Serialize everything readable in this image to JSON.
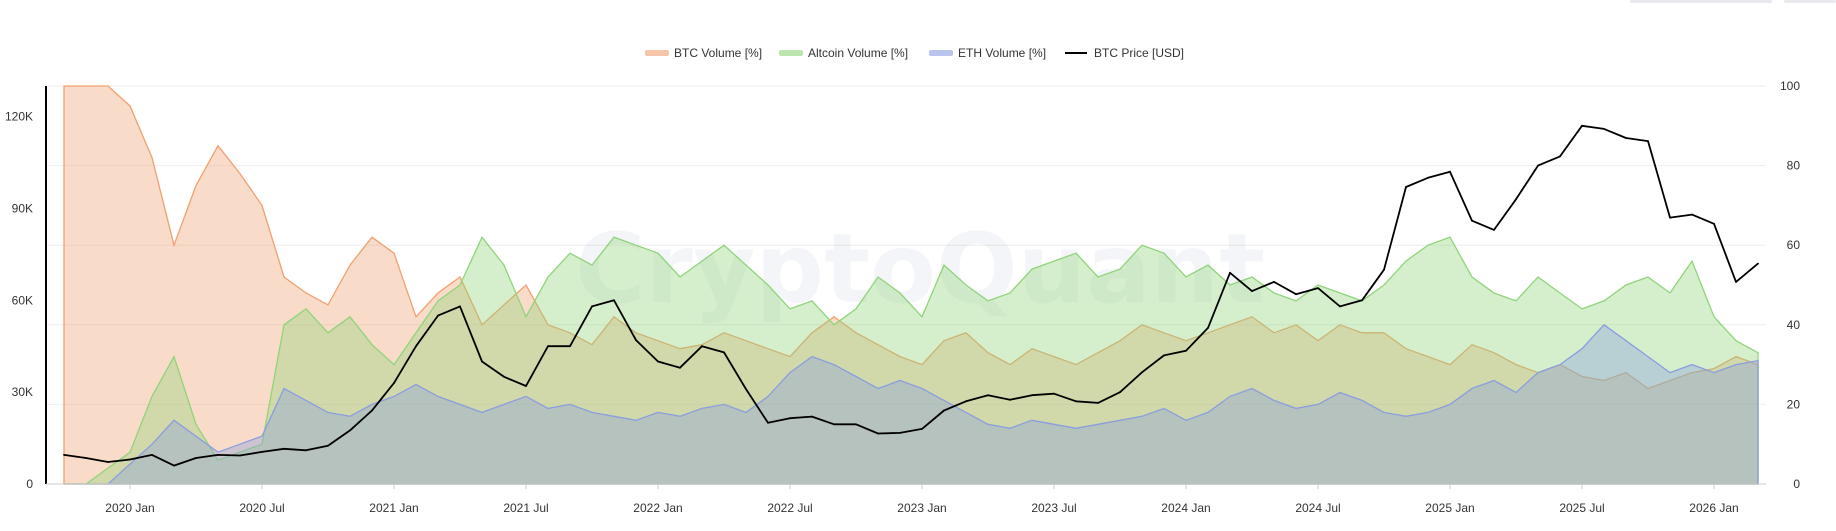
{
  "chart_data": {
    "type": "area",
    "watermark": "CryptoQuant",
    "legend": {
      "placement": "top-center",
      "items": [
        {
          "key": "btc_volume",
          "label": "BTC Volume [%]",
          "color": "#f0a070",
          "kind": "area"
        },
        {
          "key": "alt_volume",
          "label": "Altcoin Volume [%]",
          "color": "#90d47a",
          "kind": "area"
        },
        {
          "key": "eth_volume",
          "label": "ETH Volume [%]",
          "color": "#8a9ee0",
          "kind": "area"
        },
        {
          "key": "btc_price",
          "label": "BTC Price [USD]",
          "color": "#000000",
          "kind": "line"
        }
      ]
    },
    "x_ticks": [
      "2020 Jan",
      "2020 Jul",
      "2021 Jan",
      "2021 Jul",
      "2022 Jan",
      "2022 Jul",
      "2023 Jan",
      "2023 Jul",
      "2024 Jan",
      "2024 Jul",
      "2025 Jan",
      "2025 Jul",
      "2026 Jan"
    ],
    "x_range": [
      "2019-10",
      "2026-03"
    ],
    "y_left": {
      "label": "",
      "range": [
        0,
        130000
      ],
      "ticks": [
        0,
        30000,
        60000,
        90000,
        120000
      ],
      "tick_labels": [
        "0",
        "30K",
        "60K",
        "90K",
        "120K"
      ]
    },
    "y_right": {
      "label": "",
      "range": [
        0,
        100
      ],
      "ticks": [
        0,
        20,
        40,
        60,
        80,
        100
      ],
      "tick_labels": [
        "0",
        "20",
        "40",
        "60",
        "80",
        "100"
      ]
    },
    "grid": true,
    "series": [
      {
        "name": "BTC Volume [%]",
        "axis": "right",
        "color": "#f0a070",
        "x": [
          "2019-10",
          "2019-11",
          "2019-12",
          "2020-01",
          "2020-02",
          "2020-03",
          "2020-04",
          "2020-05",
          "2020-06",
          "2020-07",
          "2020-08",
          "2020-09",
          "2020-10",
          "2020-11",
          "2020-12",
          "2021-01",
          "2021-02",
          "2021-03",
          "2021-04",
          "2021-05",
          "2021-06",
          "2021-07",
          "2021-08",
          "2021-09",
          "2021-10",
          "2021-11",
          "2021-12",
          "2022-01",
          "2022-02",
          "2022-03",
          "2022-04",
          "2022-05",
          "2022-06",
          "2022-07",
          "2022-08",
          "2022-09",
          "2022-10",
          "2022-11",
          "2022-12",
          "2023-01",
          "2023-02",
          "2023-03",
          "2023-04",
          "2023-05",
          "2023-06",
          "2023-07",
          "2023-08",
          "2023-09",
          "2023-10",
          "2023-11",
          "2023-12",
          "2024-01",
          "2024-02",
          "2024-03",
          "2024-04",
          "2024-05",
          "2024-06",
          "2024-07",
          "2024-08",
          "2024-09",
          "2024-10",
          "2024-11",
          "2024-12",
          "2025-01",
          "2025-02",
          "2025-03",
          "2025-04",
          "2025-05",
          "2025-06",
          "2025-07",
          "2025-08",
          "2025-09",
          "2025-10",
          "2025-11",
          "2025-12",
          "2026-01",
          "2026-02",
          "2026-03"
        ],
        "values": [
          100,
          100,
          100,
          95,
          82,
          60,
          75,
          85,
          78,
          70,
          52,
          48,
          45,
          55,
          62,
          58,
          42,
          48,
          52,
          40,
          45,
          50,
          40,
          38,
          35,
          42,
          38,
          36,
          34,
          35,
          38,
          36,
          34,
          32,
          38,
          42,
          38,
          35,
          32,
          30,
          36,
          38,
          33,
          30,
          34,
          32,
          30,
          33,
          36,
          40,
          38,
          36,
          38,
          40,
          42,
          38,
          40,
          36,
          40,
          38,
          38,
          34,
          32,
          30,
          35,
          33,
          30,
          28,
          30,
          27,
          26,
          28,
          24,
          26,
          28,
          29,
          32,
          30
        ]
      },
      {
        "name": "Altcoin Volume [%]",
        "axis": "right",
        "color": "#90d47a",
        "x": [
          "2019-10",
          "2019-11",
          "2019-12",
          "2020-01",
          "2020-02",
          "2020-03",
          "2020-04",
          "2020-05",
          "2020-06",
          "2020-07",
          "2020-08",
          "2020-09",
          "2020-10",
          "2020-11",
          "2020-12",
          "2021-01",
          "2021-02",
          "2021-03",
          "2021-04",
          "2021-05",
          "2021-06",
          "2021-07",
          "2021-08",
          "2021-09",
          "2021-10",
          "2021-11",
          "2021-12",
          "2022-01",
          "2022-02",
          "2022-03",
          "2022-04",
          "2022-05",
          "2022-06",
          "2022-07",
          "2022-08",
          "2022-09",
          "2022-10",
          "2022-11",
          "2022-12",
          "2023-01",
          "2023-02",
          "2023-03",
          "2023-04",
          "2023-05",
          "2023-06",
          "2023-07",
          "2023-08",
          "2023-09",
          "2023-10",
          "2023-11",
          "2023-12",
          "2024-01",
          "2024-02",
          "2024-03",
          "2024-04",
          "2024-05",
          "2024-06",
          "2024-07",
          "2024-08",
          "2024-09",
          "2024-10",
          "2024-11",
          "2024-12",
          "2025-01",
          "2025-02",
          "2025-03",
          "2025-04",
          "2025-05",
          "2025-06",
          "2025-07",
          "2025-08",
          "2025-09",
          "2025-10",
          "2025-11",
          "2025-12",
          "2026-01",
          "2026-02",
          "2026-03"
        ],
        "values": [
          0,
          0,
          4,
          8,
          22,
          32,
          15,
          6,
          8,
          10,
          40,
          44,
          38,
          42,
          35,
          30,
          38,
          46,
          50,
          62,
          55,
          42,
          52,
          58,
          55,
          62,
          60,
          58,
          52,
          56,
          60,
          55,
          50,
          44,
          46,
          40,
          44,
          52,
          48,
          42,
          55,
          50,
          46,
          48,
          54,
          56,
          58,
          52,
          54,
          60,
          58,
          52,
          55,
          50,
          52,
          48,
          46,
          50,
          48,
          46,
          50,
          56,
          60,
          62,
          52,
          48,
          46,
          52,
          48,
          44,
          46,
          50,
          52,
          48,
          56,
          42,
          36,
          33
        ]
      },
      {
        "name": "ETH Volume [%]",
        "axis": "right",
        "color": "#8a9ee0",
        "x": [
          "2019-10",
          "2019-11",
          "2019-12",
          "2020-01",
          "2020-02",
          "2020-03",
          "2020-04",
          "2020-05",
          "2020-06",
          "2020-07",
          "2020-08",
          "2020-09",
          "2020-10",
          "2020-11",
          "2020-12",
          "2021-01",
          "2021-02",
          "2021-03",
          "2021-04",
          "2021-05",
          "2021-06",
          "2021-07",
          "2021-08",
          "2021-09",
          "2021-10",
          "2021-11",
          "2021-12",
          "2022-01",
          "2022-02",
          "2022-03",
          "2022-04",
          "2022-05",
          "2022-06",
          "2022-07",
          "2022-08",
          "2022-09",
          "2022-10",
          "2022-11",
          "2022-12",
          "2023-01",
          "2023-02",
          "2023-03",
          "2023-04",
          "2023-05",
          "2023-06",
          "2023-07",
          "2023-08",
          "2023-09",
          "2023-10",
          "2023-11",
          "2023-12",
          "2024-01",
          "2024-02",
          "2024-03",
          "2024-04",
          "2024-05",
          "2024-06",
          "2024-07",
          "2024-08",
          "2024-09",
          "2024-10",
          "2024-11",
          "2024-12",
          "2025-01",
          "2025-02",
          "2025-03",
          "2025-04",
          "2025-05",
          "2025-06",
          "2025-07",
          "2025-08",
          "2025-09",
          "2025-10",
          "2025-11",
          "2025-12",
          "2026-01",
          "2026-02",
          "2026-03"
        ],
        "values": [
          0,
          0,
          0,
          5,
          10,
          16,
          12,
          8,
          10,
          12,
          24,
          21,
          18,
          17,
          20,
          22,
          25,
          22,
          20,
          18,
          20,
          22,
          19,
          20,
          18,
          17,
          16,
          18,
          17,
          19,
          20,
          18,
          22,
          28,
          32,
          30,
          27,
          24,
          26,
          24,
          21,
          18,
          15,
          14,
          16,
          15,
          14,
          15,
          16,
          17,
          19,
          16,
          18,
          22,
          24,
          21,
          19,
          20,
          23,
          21,
          18,
          17,
          18,
          20,
          24,
          26,
          23,
          28,
          30,
          34,
          40,
          36,
          32,
          28,
          30,
          28,
          30,
          31
        ]
      },
      {
        "name": "BTC Price [USD]",
        "axis": "left",
        "color": "#000000",
        "kind": "line",
        "x": [
          "2019-10",
          "2019-11",
          "2019-12",
          "2020-01",
          "2020-02",
          "2020-03",
          "2020-04",
          "2020-05",
          "2020-06",
          "2020-07",
          "2020-08",
          "2020-09",
          "2020-10",
          "2020-11",
          "2020-12",
          "2021-01",
          "2021-02",
          "2021-03",
          "2021-04",
          "2021-05",
          "2021-06",
          "2021-07",
          "2021-08",
          "2021-09",
          "2021-10",
          "2021-11",
          "2021-12",
          "2022-01",
          "2022-02",
          "2022-03",
          "2022-04",
          "2022-05",
          "2022-06",
          "2022-07",
          "2022-08",
          "2022-09",
          "2022-10",
          "2022-11",
          "2022-12",
          "2023-01",
          "2023-02",
          "2023-03",
          "2023-04",
          "2023-05",
          "2023-06",
          "2023-07",
          "2023-08",
          "2023-09",
          "2023-10",
          "2023-11",
          "2023-12",
          "2024-01",
          "2024-02",
          "2024-03",
          "2024-04",
          "2024-05",
          "2024-06",
          "2024-07",
          "2024-08",
          "2024-09",
          "2024-10",
          "2024-11",
          "2024-12",
          "2025-01",
          "2025-02",
          "2025-03",
          "2025-04",
          "2025-05",
          "2025-06",
          "2025-07",
          "2025-08",
          "2025-09",
          "2025-10",
          "2025-11",
          "2025-12",
          "2026-01",
          "2026-02",
          "2026-03"
        ],
        "values": [
          9500,
          8500,
          7200,
          8000,
          9500,
          6000,
          8500,
          9500,
          9300,
          10500,
          11500,
          11000,
          12500,
          17500,
          24000,
          33000,
          45000,
          55000,
          58000,
          40000,
          35000,
          32000,
          45000,
          45000,
          58000,
          60000,
          47000,
          40000,
          38000,
          45000,
          43000,
          31000,
          20000,
          21500,
          22000,
          19500,
          19500,
          16500,
          16700,
          18000,
          24000,
          27000,
          29000,
          27500,
          29000,
          29500,
          27000,
          26500,
          30000,
          36500,
          42000,
          43500,
          51000,
          69000,
          63000,
          66000,
          62000,
          64000,
          58000,
          60000,
          70000,
          97000,
          100000,
          102000,
          86000,
          83000,
          93000,
          104000,
          107000,
          117000,
          116000,
          113000,
          112000,
          87000,
          88000,
          85000,
          66000,
          72000
        ]
      }
    ]
  }
}
